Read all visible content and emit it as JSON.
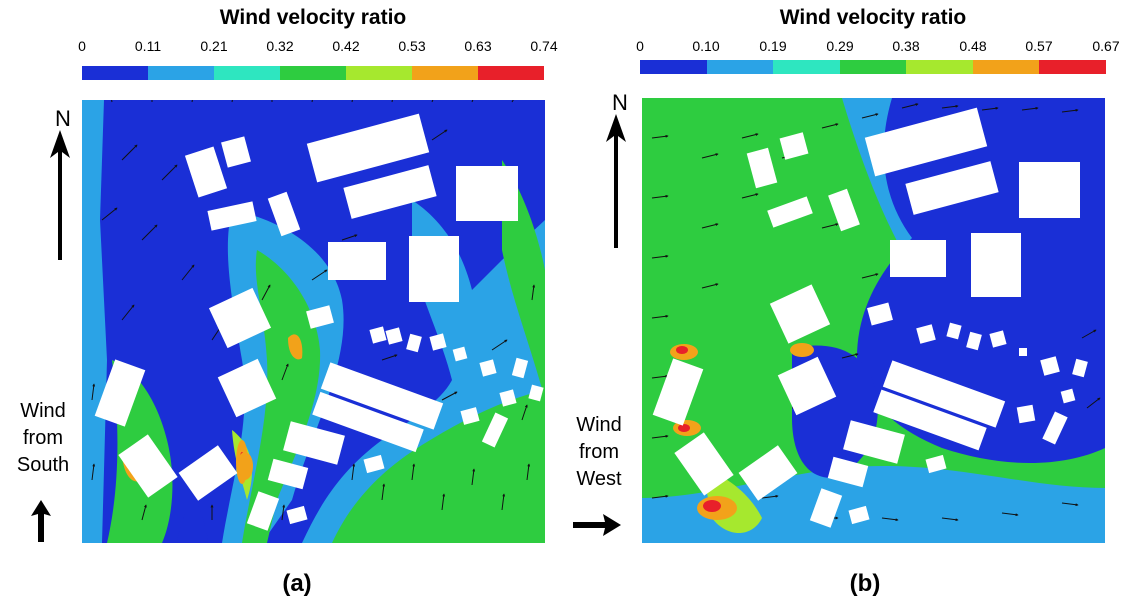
{
  "panels": [
    {
      "id": "a",
      "label": "(a)",
      "colorbar_title": "Wind velocity ratio",
      "colorbar_ticks": [
        "0",
        "0.11",
        "0.21",
        "0.32",
        "0.42",
        "0.53",
        "0.63",
        "0.74"
      ],
      "north_label": "N",
      "wind_lines": [
        "Wind",
        "from",
        "South"
      ],
      "wind_direction": "south"
    },
    {
      "id": "b",
      "label": "(b)",
      "colorbar_title": "Wind velocity ratio",
      "colorbar_ticks": [
        "0",
        "0.10",
        "0.19",
        "0.29",
        "0.38",
        "0.48",
        "0.57",
        "0.67"
      ],
      "north_label": "N",
      "wind_lines": [
        "Wind",
        "from",
        "West"
      ],
      "wind_direction": "west"
    }
  ],
  "colorbar_colors": [
    "#1a2fd6",
    "#2ba3e6",
    "#2ee6c0",
    "#2ecc40",
    "#a6e82e",
    "#f2a21a",
    "#e8202a"
  ]
}
